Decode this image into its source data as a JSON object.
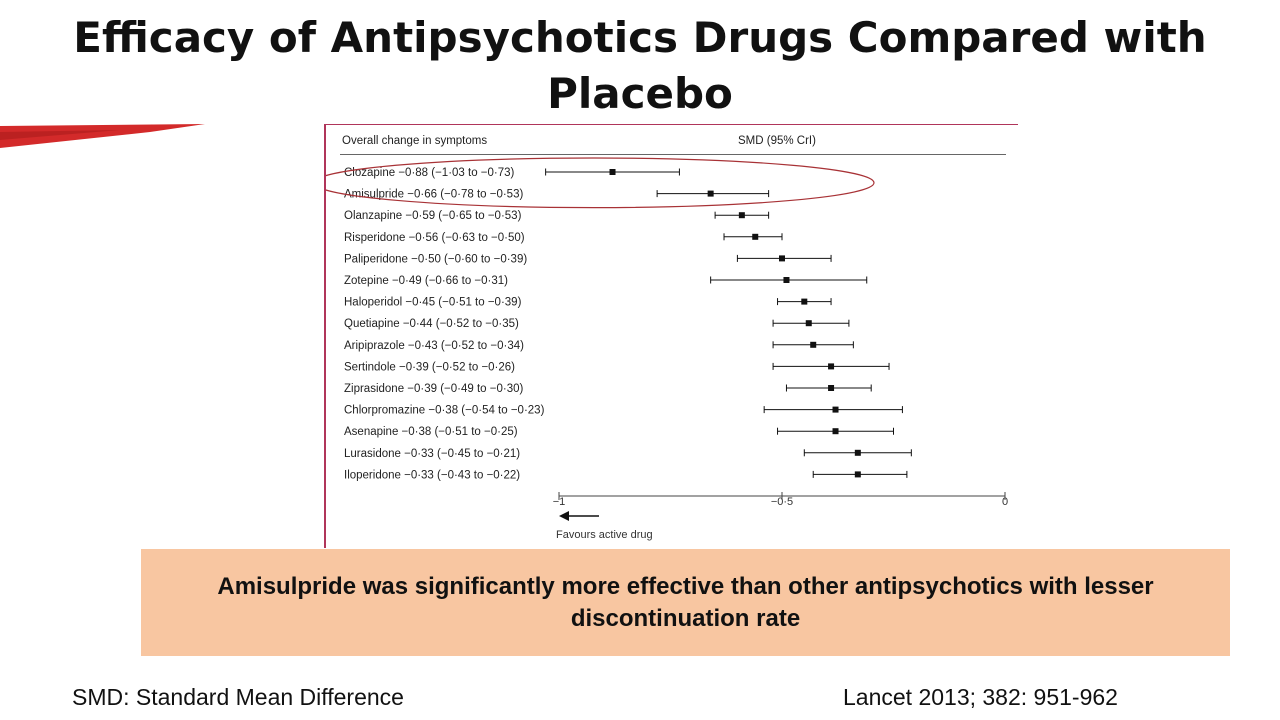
{
  "slide": {
    "title": "Efficacy of Antipsychotics Drugs Compared with Placebo",
    "callout": "Amisulpride was significantly more effective than other antipsychotics with lesser discontinuation rate",
    "footer_left": "SMD: Standard Mean Difference",
    "footer_right": "Lancet 2013; 382: 951-962",
    "colors": {
      "callout_bg": "#f8c6a1",
      "panel_border": "#b0355a",
      "highlight_ellipse": "#a83236",
      "swoosh": "#d32a2a"
    }
  },
  "chart_data": {
    "type": "forest",
    "header_left": "Overall change in symptoms",
    "header_right": "SMD (95% CrI)",
    "xlim": [
      -1,
      0
    ],
    "x_ticks": [
      -1,
      -0.5,
      0
    ],
    "x_tick_labels": [
      "−1",
      "−0·5",
      "0"
    ],
    "direction_label": "Favours active drug",
    "highlighted": [
      "Clozapine",
      "Amisulpride"
    ],
    "rows": [
      {
        "drug": "Clozapine",
        "label": "Clozapine −0·88 (−1·03 to −0·73)",
        "smd": -0.88,
        "lower": -1.03,
        "upper": -0.73
      },
      {
        "drug": "Amisulpride",
        "label": "Amisulpride −0·66 (−0·78 to −0·53)",
        "smd": -0.66,
        "lower": -0.78,
        "upper": -0.53
      },
      {
        "drug": "Olanzapine",
        "label": "Olanzapine −0·59 (−0·65 to −0·53)",
        "smd": -0.59,
        "lower": -0.65,
        "upper": -0.53
      },
      {
        "drug": "Risperidone",
        "label": "Risperidone −0·56 (−0·63 to −0·50)",
        "smd": -0.56,
        "lower": -0.63,
        "upper": -0.5
      },
      {
        "drug": "Paliperidone",
        "label": "Paliperidone −0·50 (−0·60 to −0·39)",
        "smd": -0.5,
        "lower": -0.6,
        "upper": -0.39
      },
      {
        "drug": "Zotepine",
        "label": "Zotepine −0·49 (−0·66 to −0·31)",
        "smd": -0.49,
        "lower": -0.66,
        "upper": -0.31
      },
      {
        "drug": "Haloperidol",
        "label": "Haloperidol −0·45 (−0·51 to −0·39)",
        "smd": -0.45,
        "lower": -0.51,
        "upper": -0.39
      },
      {
        "drug": "Quetiapine",
        "label": "Quetiapine −0·44 (−0·52 to −0·35)",
        "smd": -0.44,
        "lower": -0.52,
        "upper": -0.35
      },
      {
        "drug": "Aripiprazole",
        "label": "Aripiprazole −0·43 (−0·52 to −0·34)",
        "smd": -0.43,
        "lower": -0.52,
        "upper": -0.34
      },
      {
        "drug": "Sertindole",
        "label": "Sertindole −0·39 (−0·52 to −0·26)",
        "smd": -0.39,
        "lower": -0.52,
        "upper": -0.26
      },
      {
        "drug": "Ziprasidone",
        "label": "Ziprasidone −0·39 (−0·49 to −0·30)",
        "smd": -0.39,
        "lower": -0.49,
        "upper": -0.3
      },
      {
        "drug": "Chlorpromazine",
        "label": "Chlorpromazine −0·38 (−0·54 to −0·23)",
        "smd": -0.38,
        "lower": -0.54,
        "upper": -0.23
      },
      {
        "drug": "Asenapine",
        "label": "Asenapine −0·38 (−0·51 to −0·25)",
        "smd": -0.38,
        "lower": -0.51,
        "upper": -0.25
      },
      {
        "drug": "Lurasidone",
        "label": "Lurasidone −0·33 (−0·45 to −0·21)",
        "smd": -0.33,
        "lower": -0.45,
        "upper": -0.21
      },
      {
        "drug": "Iloperidone",
        "label": "Iloperidone −0·33 (−0·43 to −0·22)",
        "smd": -0.33,
        "lower": -0.43,
        "upper": -0.22
      }
    ]
  }
}
